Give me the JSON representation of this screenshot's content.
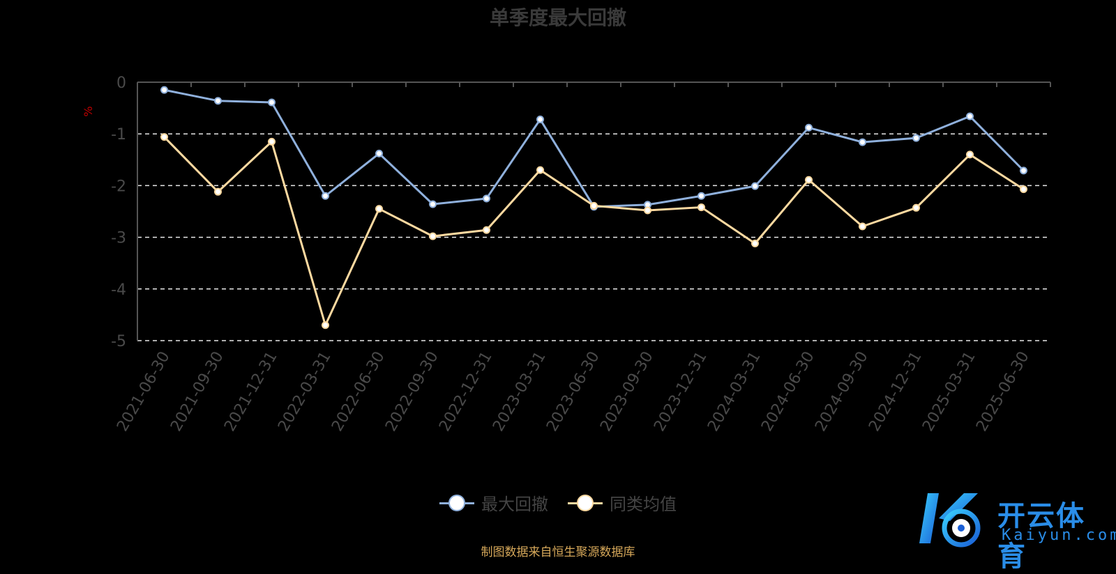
{
  "chart_data": {
    "type": "line",
    "title": "单季度最大回撤",
    "ylabel": "%",
    "ylim": [
      -5,
      0
    ],
    "yticks": [
      0,
      -1,
      -2,
      -3,
      -4,
      -5
    ],
    "grid": true,
    "legend_position": "bottom-center",
    "categories": [
      "2021-06-30",
      "2021-09-30",
      "2021-12-31",
      "2022-03-31",
      "2022-06-30",
      "2022-09-30",
      "2022-12-31",
      "2023-03-31",
      "2023-06-30",
      "2023-09-30",
      "2023-12-31",
      "2024-03-31",
      "2024-06-30",
      "2024-09-30",
      "2024-12-31",
      "2025-03-31",
      "2025-06-30"
    ],
    "series": [
      {
        "name": "最大回撤",
        "color": "#8fb0dc",
        "values": [
          -0.15,
          -0.36,
          -0.39,
          -2.2,
          -1.38,
          -2.36,
          -2.25,
          -0.72,
          -2.41,
          -2.37,
          -2.2,
          -2.01,
          -0.88,
          -1.16,
          -1.08,
          -0.66,
          -1.71
        ]
      },
      {
        "name": "同类均值",
        "color": "#fdd9a0",
        "values": [
          -1.06,
          -2.12,
          -1.15,
          -4.7,
          -2.45,
          -2.98,
          -2.86,
          -1.7,
          -2.39,
          -2.48,
          -2.42,
          -3.12,
          -1.89,
          -2.79,
          -2.43,
          -1.4,
          -2.07
        ]
      }
    ]
  },
  "footer_note": "制图数据来自恒生聚源数据库",
  "watermark": {
    "cn": "开云体育",
    "en": "Kaiyun.com"
  }
}
